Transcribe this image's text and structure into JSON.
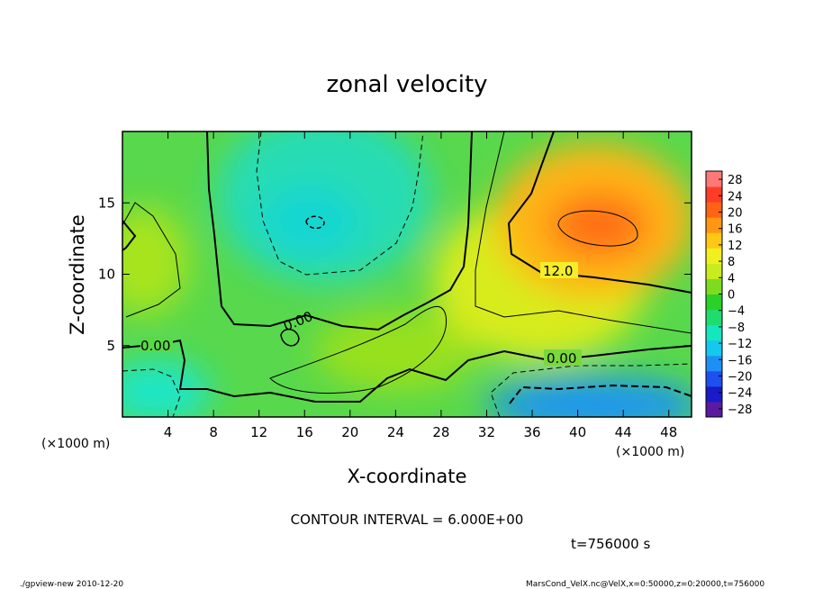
{
  "chart_data": {
    "type": "heatmap",
    "title": "zonal velocity",
    "xlabel": "X-coordinate",
    "ylabel": "Z-coordinate",
    "x_unit_label": "(×1000 m)",
    "y_unit_label": "(×1000 m)",
    "xlim": [
      0,
      50
    ],
    "ylim": [
      0,
      20
    ],
    "x_ticks": [
      "4",
      "8",
      "12",
      "16",
      "20",
      "24",
      "28",
      "32",
      "36",
      "40",
      "44",
      "48"
    ],
    "x_tick_values": [
      4,
      8,
      12,
      16,
      20,
      24,
      28,
      32,
      36,
      40,
      44,
      48
    ],
    "y_ticks": [
      "5",
      "10",
      "15"
    ],
    "y_tick_values": [
      5,
      10,
      15
    ],
    "colorbar": {
      "labels": [
        "28",
        "24",
        "20",
        "16",
        "12",
        "8",
        "4",
        "0",
        "−4",
        "−8",
        "−12",
        "−16",
        "−20",
        "−24",
        "−28"
      ],
      "levels": [
        28,
        24,
        20,
        16,
        12,
        8,
        4,
        0,
        -4,
        -8,
        -12,
        -16,
        -20,
        -24,
        -28
      ],
      "range": [
        -30,
        30
      ]
    },
    "contour_labels": [
      {
        "text": "12.0",
        "x": 38.5,
        "y": 10.0
      },
      {
        "text": "0.00",
        "x": 38.5,
        "y": 4.0
      },
      {
        "text": "0.00",
        "x": 3.0,
        "y": 5.0
      },
      {
        "text": "0.00",
        "x": 15.5,
        "y": 6.5
      }
    ],
    "field_features": [
      {
        "kind": "max",
        "x": 42,
        "y": 13,
        "value": 20
      },
      {
        "kind": "min",
        "x": 43,
        "y": 1.2,
        "value": -14
      },
      {
        "kind": "min",
        "x": 17,
        "y": 13.5,
        "value": -10
      },
      {
        "kind": "min",
        "x": 2,
        "y": 2,
        "value": -9
      }
    ],
    "contour_interval_text": "CONTOUR INTERVAL = 6.000E+00",
    "time_text": "t=756000 s"
  },
  "footer": {
    "left": "./gpview-new  2010-12-20",
    "right": "MarsCond_VelX.nc@VelX,x=0:50000,z=0:20000,t=756000"
  },
  "colors": {
    "frame": "#000000",
    "colormap": [
      "#5a1aa0",
      "#1a1ac8",
      "#1e50f0",
      "#1e90f5",
      "#14c8ee",
      "#14e6c0",
      "#1edc6e",
      "#28d228",
      "#7ddc1e",
      "#c8ec1e",
      "#f0f01e",
      "#ffc814",
      "#ff9614",
      "#ff6414",
      "#ff3c28",
      "#ff7878"
    ]
  }
}
